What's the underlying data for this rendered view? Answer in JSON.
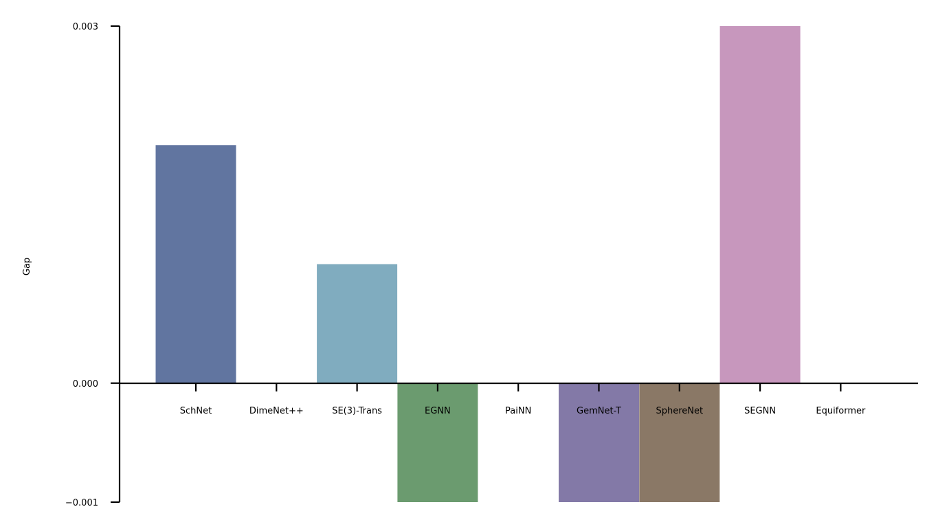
{
  "chart_data": {
    "type": "bar",
    "title": "",
    "xlabel": "",
    "ylabel": "Gap",
    "ylim": [
      -0.001,
      0.003
    ],
    "yticks": [
      "0.003",
      "0.000",
      "−0.001"
    ],
    "ytick_values": [
      0.003,
      0.0,
      -0.001
    ],
    "grid": false,
    "legend": "none",
    "categories": [
      "SchNet",
      "DimeNet++",
      "SE(3)-Trans",
      "EGNN",
      "PaiNN",
      "GemNet-T",
      "SphereNet",
      "SEGNN",
      "Equiformer"
    ],
    "values": [
      0.002,
      0.0,
      0.001,
      -0.001,
      0.0,
      -0.001,
      -0.001,
      0.003,
      0.0
    ],
    "colors": [
      "#6175a0",
      "#d1a96e",
      "#80acbf",
      "#6b9b6f",
      "#d28a67",
      "#8379a7",
      "#8a7866",
      "#c797bd",
      "#a8a8a8"
    ]
  }
}
